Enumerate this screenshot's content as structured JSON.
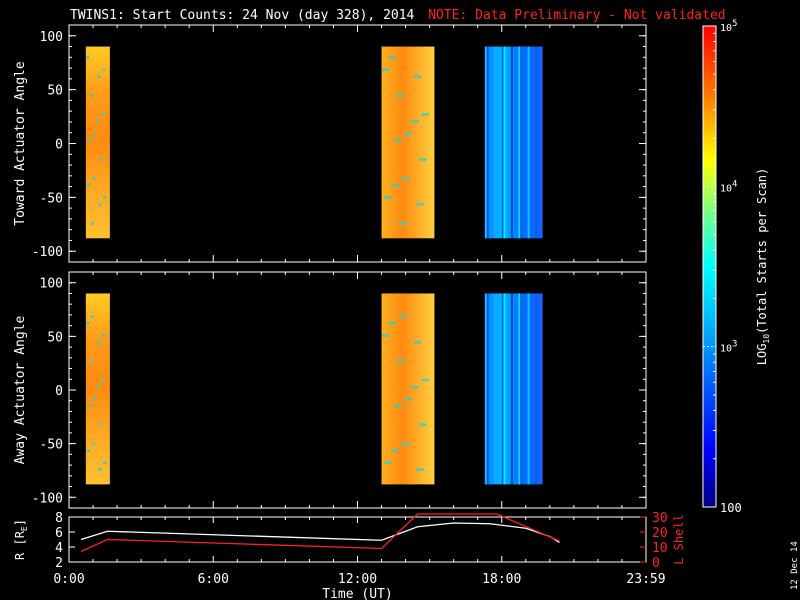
{
  "title": "TWINS1: Start Counts: 24 Nov (day 328), 2014",
  "note": "NOTE: Data Preliminary - Not validated",
  "date_stamp": "12 Dec 14",
  "colors": {
    "background": "#000000",
    "foreground": "#ffffff",
    "note": "#ff2020",
    "lshell": "#ff2020",
    "radius_line": "#ffffff"
  },
  "chart_data": [
    {
      "type": "heatmap",
      "panel": "toward",
      "ylabel": "Toward Actuator Angle",
      "ylim": [
        -110,
        110
      ],
      "yticks": [
        "100",
        "50",
        "0",
        "-50",
        "-100"
      ],
      "ytick_values": [
        100,
        50,
        0,
        -50,
        -100
      ],
      "xlim_hours": [
        0,
        24
      ],
      "angle_range": [
        -88,
        90
      ],
      "blocks": [
        {
          "start_hour": 0.7,
          "end_hour": 1.7,
          "level": "high"
        },
        {
          "start_hour": 13.0,
          "end_hour": 15.2,
          "level": "high"
        },
        {
          "start_hour": 17.3,
          "end_hour": 19.7,
          "level": "low"
        }
      ]
    },
    {
      "type": "heatmap",
      "panel": "away",
      "ylabel": "Away Actuator Angle",
      "ylim": [
        -110,
        110
      ],
      "yticks": [
        "100",
        "50",
        "0",
        "-50",
        "-100"
      ],
      "ytick_values": [
        100,
        50,
        0,
        -50,
        -100
      ],
      "xlim_hours": [
        0,
        24
      ],
      "angle_range": [
        -88,
        90
      ],
      "blocks": [
        {
          "start_hour": 0.7,
          "end_hour": 1.7,
          "level": "high"
        },
        {
          "start_hour": 13.0,
          "end_hour": 15.2,
          "level": "high"
        },
        {
          "start_hour": 17.3,
          "end_hour": 19.7,
          "level": "low"
        }
      ]
    },
    {
      "type": "line",
      "panel": "orbit",
      "ylabel_left": "R [R",
      "ylabel_left_sub": "E",
      "ylabel_left_end": "]",
      "ylabel_right": "L Shell",
      "ylim_left": [
        2,
        8
      ],
      "yticks_left": [
        "8",
        "6",
        "4",
        "2"
      ],
      "ytick_values_left": [
        8,
        6,
        4,
        2
      ],
      "ylim_right": [
        0,
        30
      ],
      "yticks_right": [
        "30",
        "20",
        "10",
        "0"
      ],
      "ytick_values_right": [
        30,
        20,
        10,
        0
      ],
      "xlabel": "Time (UT)",
      "xticks": [
        "0:00",
        "6:00",
        "12:00",
        "18:00",
        "23:59"
      ],
      "xtick_hours": [
        0,
        6,
        12,
        18,
        24
      ],
      "series": [
        {
          "key": "radius",
          "axis": "left",
          "x": [
            0.5,
            1.6,
            13.0,
            14.5,
            16.0,
            17.5,
            19.0,
            20.0,
            20.4
          ],
          "y": [
            5.0,
            6.1,
            4.9,
            6.7,
            7.2,
            7.1,
            6.5,
            5.4,
            4.6
          ]
        },
        {
          "key": "lshell",
          "axis": "right",
          "x": [
            0.5,
            1.6,
            13.0,
            14.5,
            17.8,
            20.4
          ],
          "y": [
            7,
            15,
            9,
            32,
            32,
            14
          ]
        }
      ]
    }
  ],
  "colorbar": {
    "label_main": "LOG",
    "label_sub": "10",
    "label_rest": "(Total Starts per Scan)",
    "tick_labels": [
      {
        "base": "10",
        "exp": "5",
        "value": 5
      },
      {
        "base": "10",
        "exp": "4",
        "value": 4
      },
      {
        "base": "10",
        "exp": "3",
        "value": 3
      },
      {
        "base": "100",
        "exp": "",
        "value": 2
      }
    ],
    "range": [
      2,
      5
    ]
  }
}
